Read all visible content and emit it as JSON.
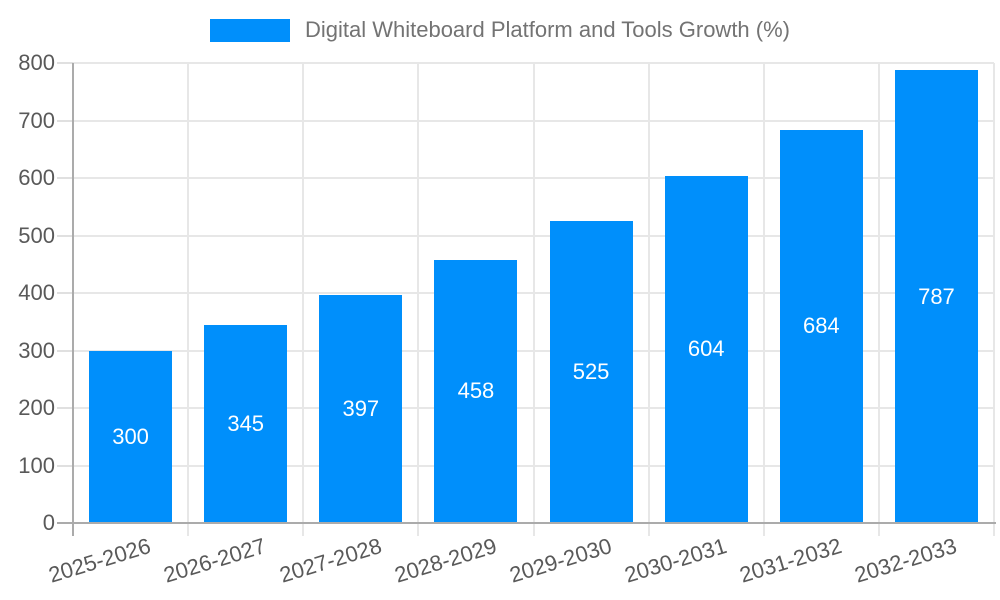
{
  "legend": {
    "label": "Digital Whiteboard Platform and Tools Growth (%)"
  },
  "chart_data": {
    "type": "bar",
    "title": "Digital Whiteboard Platform and Tools Growth (%)",
    "categories": [
      "2025-2026",
      "2026-2027",
      "2027-2028",
      "2028-2029",
      "2029-2030",
      "2030-2031",
      "2031-2032",
      "2032-2033"
    ],
    "values": [
      300,
      345,
      397,
      458,
      525,
      604,
      684,
      787
    ],
    "bar_labels": [
      "300",
      "345",
      "397",
      "458",
      "525",
      "604",
      "684",
      "787"
    ],
    "xlabel": "",
    "ylabel": "",
    "ylim": [
      0,
      800
    ],
    "yticks": [
      0,
      100,
      200,
      300,
      400,
      500,
      600,
      700,
      800
    ],
    "grid": true,
    "legend_position": "top",
    "colors": {
      "bar": "#008FFB",
      "bar_label": "#FFFFFF",
      "grid": "#E7E7E7",
      "tick": "#E0E0E0",
      "axis": "#ABABAB",
      "axis_label": "#595959",
      "legend_label": "#737373",
      "background": "#FFFFFF"
    }
  }
}
